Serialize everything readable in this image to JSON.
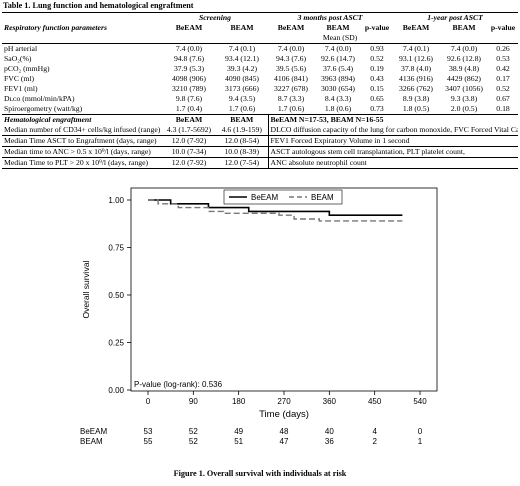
{
  "table": {
    "title": "Table 1. Lung function and hematological engraftment",
    "group_headers": {
      "screening": "Screening",
      "three_months": "3 months post ASCT",
      "one_year": "1-year post ASCT"
    },
    "resp_header": {
      "label": "Respiratory function parameters",
      "cols": [
        "BeEAM",
        "BEAM",
        "BeEAM",
        "BEAM",
        "p-value",
        "BeEAM",
        "BEAM",
        "p-value"
      ],
      "mean_sd": "Mean (SD)"
    },
    "resp_rows": [
      {
        "label": "pH arterial",
        "values": [
          "7.4 (0.0)",
          "7.4 (0.1)",
          "7.4 (0.0)",
          "7.4 (0.0)",
          "0.93",
          "7.4 (0.1)",
          "7.4 (0.0)",
          "0.26"
        ]
      },
      {
        "label": "SaO₂(%)",
        "values": [
          "94.8 (7.6)",
          "93.4 (12.1)",
          "94.3 (7.6)",
          "92.6 (14.7)",
          "0.52",
          "93.1 (12.6)",
          "92.6 (12.8)",
          "0.53"
        ]
      },
      {
        "label": "pCO₂ (mmHg)",
        "values": [
          "37.9 (5.3)",
          "39.3 (4.2)",
          "39.5 (5.6)",
          "37.6 (5.4)",
          "0.19",
          "37.8 (4.0)",
          "38.9 (4.8)",
          "0.42"
        ]
      },
      {
        "label": "FVC (ml)",
        "values": [
          "4098 (906)",
          "4090 (845)",
          "4106 (841)",
          "3963 (894)",
          "0.43",
          "4136 (916)",
          "4429 (862)",
          "0.17"
        ]
      },
      {
        "label": "FEV1 (ml)",
        "values": [
          "3210 (789)",
          "3173 (666)",
          "3227 (678)",
          "3030 (654)",
          "0.15",
          "3266 (762)",
          "3407 (1056)",
          "0.52"
        ]
      },
      {
        "label": "Dʟᴄᴏ (mmol/min/kPA)",
        "values": [
          "9.8 (7.6)",
          "9.4 (3.5)",
          "8.7 (3.3)",
          "8.4 (3.3)",
          "0.65",
          "8.9 (3.8)",
          "9.3 (3.8)",
          "0.67"
        ]
      },
      {
        "label": "Spiroergometry (watt/kg)",
        "values": [
          "1.7 (0.4)",
          "1.7 (0.6)",
          "1.7 (0.6)",
          "1.8 (0.6)",
          "0.73",
          "1.8 (0.5)",
          "2.0 (0.5)",
          "0.18"
        ]
      }
    ],
    "hem_header": {
      "label": "Hematological engraftment",
      "cols": [
        "BeEAM",
        "BEAM"
      ],
      "n_note": "BeEAM N=17-53, BEAM N=16-55"
    },
    "hem_rows": [
      {
        "label": "Median number of CD34+ cells/kg infused (range)",
        "values": [
          "4.3 (1.7-5692)",
          "4.6 (1.9-159)"
        ],
        "note": "DLCO diffusion capacity of the lung for carbon monoxide, FVC Forced Vital Capacity,"
      },
      {
        "label": "Median Time ASCT to Engraftment (days, range)",
        "values": [
          "12.0 (7-92)",
          "12.0 (8-54)"
        ],
        "note": "FEV1 Forced Expiratory Volume in 1 second"
      },
      {
        "label": "Median time to ANC > 0.5 x 10⁹/l (days, range)",
        "values": [
          "10.0 (7-34)",
          "10.0 (8-39)"
        ],
        "note": "ASCT autologous stem cell transplantation, PLT platelet count,"
      },
      {
        "label": "Median Time to PLT > 20 x 10⁹/l (days, range)",
        "values": [
          "12.0 (7-92)",
          "12.0 (7-54)"
        ],
        "note": "ANC absolute neutrophil count"
      }
    ]
  },
  "figure": {
    "caption": "Figure 1. Overall survival with individuals at risk",
    "pvalue_text": "P-value (log-rank): 0.536",
    "chart_data": {
      "type": "line",
      "title": "",
      "xlabel": "Time (days)",
      "ylabel": "Overall survival",
      "xlim": [
        0,
        540
      ],
      "ylim": [
        0.0,
        1.0
      ],
      "xticks": [
        0,
        90,
        180,
        270,
        360,
        450,
        540
      ],
      "yticks": [
        0.0,
        0.25,
        0.5,
        0.75,
        1.0
      ],
      "ytick_labels": [
        "0.00",
        "0.25",
        "0.50",
        "0.75",
        "1.00"
      ],
      "legend_position": "top",
      "series": [
        {
          "name": "BeEAM",
          "style": "solid",
          "color": "#000000",
          "steps": [
            [
              0,
              1.0
            ],
            [
              45,
              0.98
            ],
            [
              120,
              0.96
            ],
            [
              200,
              0.94
            ],
            [
              235,
              0.94
            ],
            [
              360,
              0.92
            ],
            [
              505,
              0.92
            ]
          ]
        },
        {
          "name": "BEAM",
          "style": "dashed",
          "color": "#777777",
          "steps": [
            [
              0,
              1.0
            ],
            [
              20,
              0.98
            ],
            [
              60,
              0.96
            ],
            [
              120,
              0.94
            ],
            [
              150,
              0.93
            ],
            [
              260,
              0.92
            ],
            [
              290,
              0.9
            ],
            [
              340,
              0.89
            ],
            [
              400,
              0.89
            ],
            [
              505,
              0.89
            ]
          ]
        }
      ],
      "at_risk": {
        "times": [
          0,
          90,
          180,
          270,
          360,
          450,
          540
        ],
        "rows": [
          {
            "name": "BeEAM",
            "counts": [
              "53",
              "52",
              "49",
              "48",
              "40",
              "4",
              "0"
            ]
          },
          {
            "name": "BEAM",
            "counts": [
              "55",
              "52",
              "51",
              "47",
              "36",
              "2",
              "1"
            ]
          }
        ]
      }
    }
  }
}
